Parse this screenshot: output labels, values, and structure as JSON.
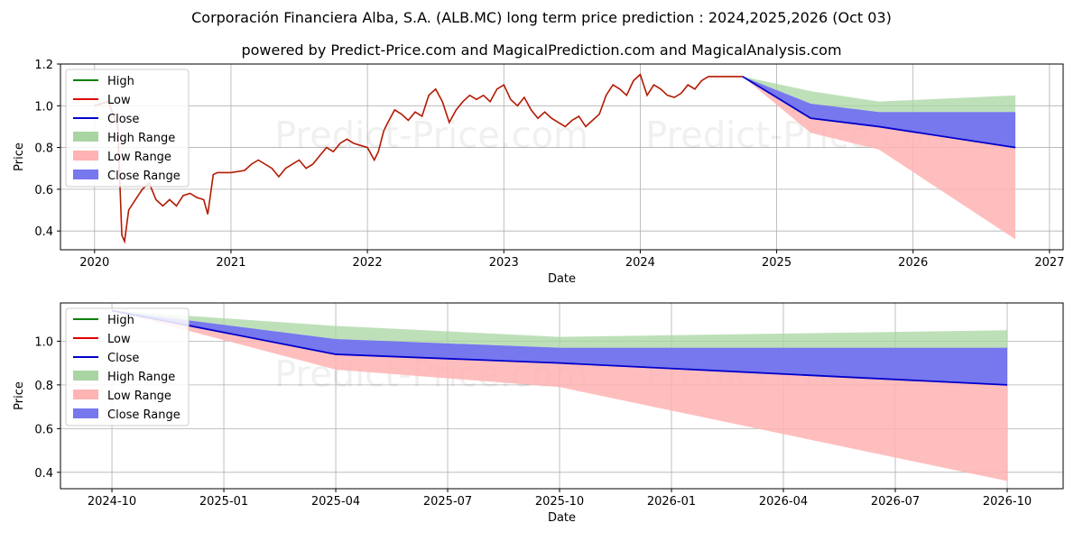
{
  "title": "Corporación Financiera Alba, S.A. (ALB.MC) long term price prediction : 2024,2025,2026 (Oct 03)",
  "subtitle": "powered by Predict-Price.com and MagicalPrediction.com and MagicalAnalysis.com",
  "watermark": "Predict-Price.com",
  "colors": {
    "high": "#008000",
    "low": "#e00000",
    "close": "#0000cc",
    "high_range": "#a8d5a2",
    "low_range": "#ffb3b3",
    "close_range": "#7777ee",
    "grid": "#b0b0b0"
  },
  "chart_data": [
    {
      "type": "line",
      "name": "full-history",
      "xlabel": "Date",
      "ylabel": "Price",
      "xlim": [
        2019.75,
        2027.1
      ],
      "ylim": [
        0.31,
        1.2
      ],
      "x_ticks": [
        2020,
        2021,
        2022,
        2023,
        2024,
        2025,
        2026,
        2027
      ],
      "x_tick_labels": [
        "2020",
        "2021",
        "2022",
        "2023",
        "2024",
        "2025",
        "2026",
        "2027"
      ],
      "y_ticks": [
        0.4,
        0.6,
        0.8,
        1.0,
        1.2
      ],
      "y_tick_labels": [
        "0.4",
        "0.6",
        "0.8",
        "1.0",
        "1.2"
      ],
      "legend": [
        "High",
        "Low",
        "Close",
        "High Range",
        "Low Range",
        "Close Range"
      ],
      "legend_position": "top-left",
      "grid": true,
      "history_x": [
        2020.0,
        2020.1,
        2020.17,
        2020.2,
        2020.22,
        2020.25,
        2020.3,
        2020.35,
        2020.4,
        2020.45,
        2020.5,
        2020.55,
        2020.6,
        2020.65,
        2020.7,
        2020.75,
        2020.8,
        2020.83,
        2020.87,
        2020.9,
        2021.0,
        2021.1,
        2021.15,
        2021.2,
        2021.3,
        2021.35,
        2021.4,
        2021.45,
        2021.5,
        2021.55,
        2021.6,
        2021.65,
        2021.7,
        2021.75,
        2021.8,
        2021.85,
        2021.9,
        2022.0,
        2022.05,
        2022.08,
        2022.12,
        2022.15,
        2022.2,
        2022.25,
        2022.3,
        2022.35,
        2022.4,
        2022.45,
        2022.5,
        2022.55,
        2022.6,
        2022.65,
        2022.7,
        2022.75,
        2022.8,
        2022.85,
        2022.9,
        2022.95,
        2023.0,
        2023.05,
        2023.1,
        2023.15,
        2023.2,
        2023.25,
        2023.3,
        2023.35,
        2023.4,
        2023.45,
        2023.5,
        2023.55,
        2023.6,
        2023.65,
        2023.7,
        2023.75,
        2023.8,
        2023.85,
        2023.9,
        2023.95,
        2024.0,
        2024.05,
        2024.1,
        2024.15,
        2024.2,
        2024.25,
        2024.3,
        2024.35,
        2024.4,
        2024.45,
        2024.5,
        2024.55,
        2024.6,
        2024.65,
        2024.7,
        2024.75
      ],
      "history_y": [
        1.0,
        1.02,
        0.9,
        0.38,
        0.35,
        0.5,
        0.55,
        0.6,
        0.63,
        0.55,
        0.52,
        0.55,
        0.52,
        0.57,
        0.58,
        0.56,
        0.55,
        0.48,
        0.67,
        0.68,
        0.68,
        0.69,
        0.72,
        0.74,
        0.7,
        0.66,
        0.7,
        0.72,
        0.74,
        0.7,
        0.72,
        0.76,
        0.8,
        0.78,
        0.82,
        0.84,
        0.82,
        0.8,
        0.74,
        0.78,
        0.88,
        0.92,
        0.98,
        0.96,
        0.93,
        0.97,
        0.95,
        1.05,
        1.08,
        1.02,
        0.92,
        0.98,
        1.02,
        1.05,
        1.03,
        1.05,
        1.02,
        1.08,
        1.1,
        1.03,
        1.0,
        1.04,
        0.98,
        0.94,
        0.97,
        0.94,
        0.92,
        0.9,
        0.93,
        0.95,
        0.9,
        0.93,
        0.96,
        1.05,
        1.1,
        1.08,
        1.05,
        1.12,
        1.15,
        1.05,
        1.1,
        1.08,
        1.05,
        1.04,
        1.06,
        1.1,
        1.08,
        1.12,
        1.14,
        1.14,
        1.14,
        1.14,
        1.14,
        1.14
      ],
      "forecast_x": [
        2024.75,
        2025.25,
        2025.75,
        2026.75
      ],
      "close": [
        1.14,
        0.94,
        0.9,
        0.8
      ],
      "high_range_top": [
        1.14,
        1.07,
        1.02,
        1.05
      ],
      "close_range_top": [
        1.14,
        1.01,
        0.97,
        0.97
      ],
      "low_range_top": [
        1.14,
        0.94,
        0.9,
        0.8
      ],
      "low_range_bottom": [
        1.14,
        0.87,
        0.79,
        0.36
      ]
    },
    {
      "type": "line",
      "name": "forecast-zoom",
      "xlabel": "Date",
      "ylabel": "Price",
      "xlim": [
        2024.635,
        2026.875
      ],
      "ylim": [
        0.325,
        1.175
      ],
      "x_ticks": [
        2024.75,
        2025.0,
        2025.25,
        2025.5,
        2025.75,
        2026.0,
        2026.25,
        2026.5,
        2026.75
      ],
      "x_tick_labels": [
        "2024-10",
        "2025-01",
        "2025-04",
        "2025-07",
        "2025-10",
        "2026-01",
        "2026-04",
        "2026-07",
        "2026-10"
      ],
      "y_ticks": [
        0.4,
        0.6,
        0.8,
        1.0
      ],
      "y_tick_labels": [
        "0.4",
        "0.6",
        "0.8",
        "1.0"
      ],
      "legend": [
        "High",
        "Low",
        "Close",
        "High Range",
        "Low Range",
        "Close Range"
      ],
      "legend_position": "top-left",
      "grid": true,
      "forecast_x": [
        2024.75,
        2025.25,
        2025.75,
        2026.75
      ],
      "close": [
        1.14,
        0.94,
        0.9,
        0.8
      ],
      "high_range_top": [
        1.14,
        1.07,
        1.02,
        1.05
      ],
      "close_range_top": [
        1.14,
        1.01,
        0.97,
        0.97
      ],
      "low_range_top": [
        1.14,
        0.94,
        0.9,
        0.8
      ],
      "low_range_bottom": [
        1.14,
        0.87,
        0.79,
        0.36
      ]
    }
  ]
}
